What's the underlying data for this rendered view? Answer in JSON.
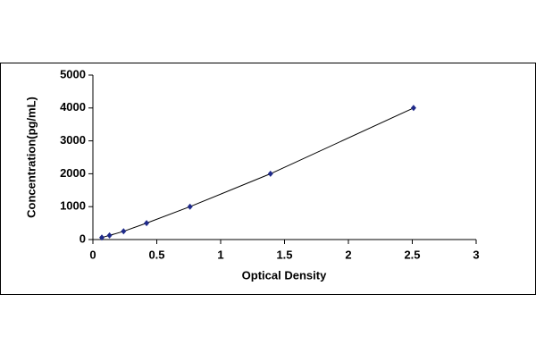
{
  "chart_data": {
    "type": "scatter",
    "x_label": "Optical Density",
    "y_label": "Concentration(pg/mL)",
    "x": [
      0.07,
      0.13,
      0.24,
      0.42,
      0.76,
      1.39,
      2.51
    ],
    "values": [
      62.5,
      125,
      250,
      500,
      1000,
      2000,
      4000
    ],
    "marker_color": "#1f2a8a",
    "line_color": "#000000",
    "xlim": [
      0,
      3
    ],
    "xticks": [
      0,
      0.5,
      1,
      1.5,
      2,
      2.5,
      3
    ],
    "ylim": [
      0,
      5000
    ],
    "yticks": [
      0,
      1000,
      2000,
      3000,
      4000,
      5000
    ],
    "grid": false
  }
}
